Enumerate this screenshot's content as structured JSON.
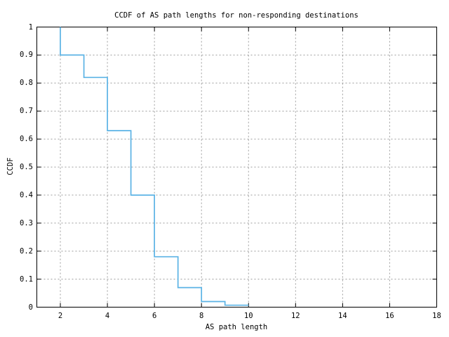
{
  "chart_data": {
    "type": "line",
    "style": "step-ccdf",
    "title": "CCDF of AS path lengths for non-responding destinations",
    "xlabel": "AS path length",
    "ylabel": "CCDF",
    "xlim": [
      1,
      18
    ],
    "ylim": [
      0,
      1
    ],
    "grid": true,
    "legend_position": "none",
    "x_ticks": [
      2,
      4,
      6,
      8,
      10,
      12,
      14,
      16,
      18
    ],
    "x_tick_labels": [
      "2",
      "4",
      "6",
      "8",
      "10",
      "12",
      "14",
      "16",
      "18"
    ],
    "y_ticks": [
      0,
      0.1,
      0.2,
      0.3,
      0.4,
      0.5,
      0.6,
      0.7,
      0.8,
      0.9,
      1
    ],
    "y_tick_labels": [
      "0",
      "0.1",
      "0.2",
      "0.3",
      "0.4",
      "0.5",
      "0.6",
      "0.7",
      "0.8",
      "0.9",
      "1"
    ],
    "series": [
      {
        "name": "CCDF of AS path lengths",
        "color": "#5bb3e5",
        "points": [
          [
            2,
            1.0
          ],
          [
            2,
            0.9
          ],
          [
            3,
            0.9
          ],
          [
            3,
            0.82
          ],
          [
            4,
            0.82
          ],
          [
            4,
            0.63
          ],
          [
            5,
            0.63
          ],
          [
            5,
            0.4
          ],
          [
            6,
            0.4
          ],
          [
            6,
            0.18
          ],
          [
            7,
            0.18
          ],
          [
            7,
            0.07
          ],
          [
            8,
            0.07
          ],
          [
            8,
            0.02
          ],
          [
            9,
            0.02
          ],
          [
            9,
            0.007
          ],
          [
            10,
            0.007
          ]
        ]
      }
    ]
  },
  "colors": {
    "curve": "#5bb3e5",
    "grid": "#9c9c9c",
    "axis": "#000000",
    "text": "#000000",
    "background": "#ffffff"
  }
}
